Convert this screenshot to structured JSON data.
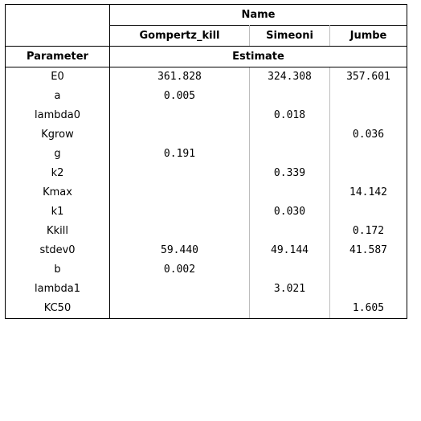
{
  "header": {
    "group_label": "Name",
    "columns": [
      "Gompertz_kill",
      "Simeoni",
      "Jumbe"
    ],
    "parameter_label": "Parameter",
    "estimate_label": "Estimate"
  },
  "rows": [
    {
      "param": "E0",
      "values": [
        "361.828",
        "324.308",
        "357.601"
      ]
    },
    {
      "param": "a",
      "values": [
        "0.005",
        "",
        ""
      ]
    },
    {
      "param": "lambda0",
      "values": [
        "",
        "0.018",
        ""
      ]
    },
    {
      "param": "Kgrow",
      "values": [
        "",
        "",
        "0.036"
      ]
    },
    {
      "param": "g",
      "values": [
        "0.191",
        "",
        ""
      ]
    },
    {
      "param": "k2",
      "values": [
        "",
        "0.339",
        ""
      ]
    },
    {
      "param": "Kmax",
      "values": [
        "",
        "",
        "14.142"
      ]
    },
    {
      "param": "k1",
      "values": [
        "",
        "0.030",
        ""
      ]
    },
    {
      "param": "Kkill",
      "values": [
        "",
        "",
        "0.172"
      ]
    },
    {
      "param": "stdev0",
      "values": [
        "59.440",
        "49.144",
        "41.587"
      ]
    },
    {
      "param": "b",
      "values": [
        "0.002",
        "",
        ""
      ]
    },
    {
      "param": "lambda1",
      "values": [
        "",
        "3.021",
        ""
      ]
    },
    {
      "param": "KC50",
      "values": [
        "",
        "",
        "1.605"
      ]
    }
  ]
}
